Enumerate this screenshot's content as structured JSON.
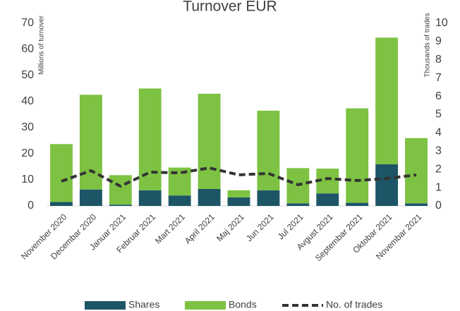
{
  "chart_data": {
    "type": "bar",
    "title": "Turnover EUR",
    "y_label": "Millions of turnover",
    "y2_label": "Thousands of trades",
    "categories": [
      "November 2020",
      "Decembar 2020",
      "Januar 2021",
      "Februar 2021",
      "Mart 2021",
      "April 2021",
      "Maj 2021",
      "Jun 2021",
      "Jul 2021",
      "Avgust 2021",
      "Septembar 2021",
      "Oktobar 2021",
      "Novembar 2021"
    ],
    "series": [
      {
        "name": "Shares",
        "color": "#1d5566",
        "values": [
          1.5,
          6.3,
          0.5,
          6,
          4,
          6.5,
          3.3,
          6,
          1,
          4.8,
          1.2,
          16,
          1
        ]
      },
      {
        "name": "Bonds",
        "color": "#7dc242",
        "values": [
          22.2,
          36.3,
          11.3,
          39,
          10.7,
          36.5,
          2.7,
          30.5,
          13.5,
          9.5,
          36.2,
          48.5,
          25
        ]
      },
      {
        "name": "No. of trades",
        "type": "line",
        "axis": "y2",
        "color": "#333333",
        "values": [
          1.35,
          1.93,
          1.08,
          1.85,
          1.81,
          2.08,
          1.7,
          1.78,
          1.16,
          1.5,
          1.39,
          1.5,
          1.7
        ]
      }
    ],
    "stacked": true,
    "ylim": [
      0,
      70
    ],
    "yticks": [
      0,
      10,
      20,
      30,
      40,
      50,
      60,
      70
    ],
    "y2lim": [
      0,
      10
    ],
    "y2ticks": [
      0,
      1,
      2,
      3,
      4,
      5,
      6,
      7,
      8,
      9,
      10
    ],
    "legend": "bottom"
  }
}
